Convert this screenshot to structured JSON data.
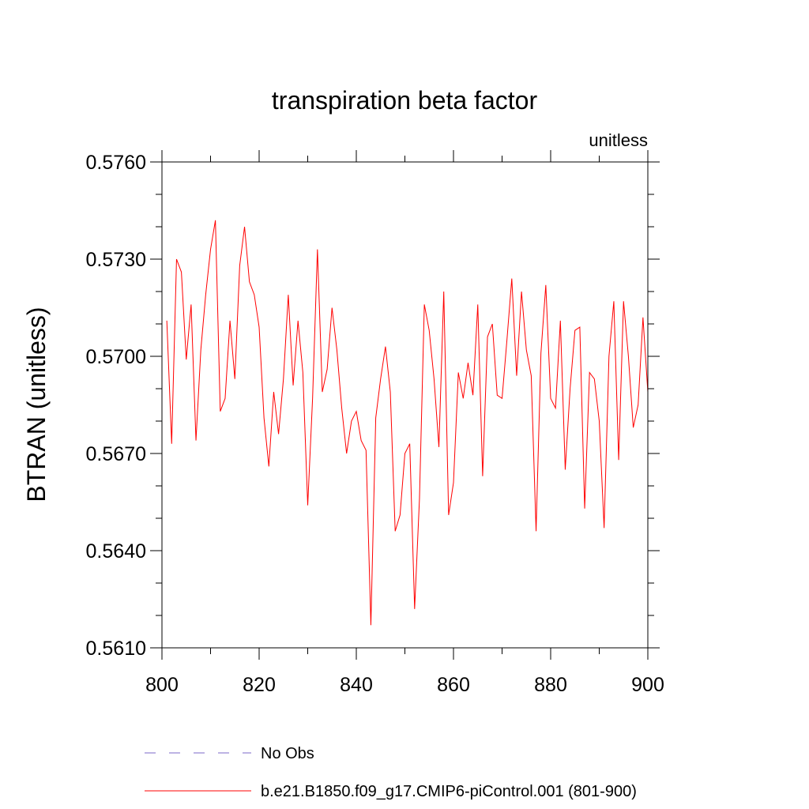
{
  "chart_data": {
    "type": "line",
    "title": "transpiration beta factor",
    "units_label": "unitless",
    "ylabel": "BTRAN  (unitless)",
    "xlabel": "",
    "xlim": [
      800,
      900
    ],
    "ylim": [
      0.561,
      0.576
    ],
    "x_ticks": [
      {
        "value": 800,
        "label": "800"
      },
      {
        "value": 820,
        "label": "820"
      },
      {
        "value": 840,
        "label": "840"
      },
      {
        "value": 860,
        "label": "860"
      },
      {
        "value": 880,
        "label": "880"
      },
      {
        "value": 900,
        "label": "900"
      }
    ],
    "y_ticks": [
      {
        "value": 0.561,
        "label": "0.5610"
      },
      {
        "value": 0.564,
        "label": "0.5640"
      },
      {
        "value": 0.567,
        "label": "0.5670"
      },
      {
        "value": 0.57,
        "label": "0.5700"
      },
      {
        "value": 0.573,
        "label": "0.5730"
      },
      {
        "value": 0.576,
        "label": "0.5760"
      }
    ],
    "grid": false,
    "legend_position": "bottom",
    "series": [
      {
        "name": "No Obs",
        "color": "#7b68c8",
        "dash": "dashed",
        "x": [],
        "values": []
      },
      {
        "name": "b.e21.B1850.f09_g17.CMIP6-piControl.001 (801-900)",
        "color": "#ff0000",
        "dash": "solid",
        "x": [
          801,
          802,
          803,
          804,
          805,
          806,
          807,
          808,
          809,
          810,
          811,
          812,
          813,
          814,
          815,
          816,
          817,
          818,
          819,
          820,
          821,
          822,
          823,
          824,
          825,
          826,
          827,
          828,
          829,
          830,
          831,
          832,
          833,
          834,
          835,
          836,
          837,
          838,
          839,
          840,
          841,
          842,
          843,
          844,
          845,
          846,
          847,
          848,
          849,
          850,
          851,
          852,
          853,
          854,
          855,
          856,
          857,
          858,
          859,
          860,
          861,
          862,
          863,
          864,
          865,
          866,
          867,
          868,
          869,
          870,
          871,
          872,
          873,
          874,
          875,
          876,
          877,
          878,
          879,
          880,
          881,
          882,
          883,
          884,
          885,
          886,
          887,
          888,
          889,
          890,
          891,
          892,
          893,
          894,
          895,
          896,
          897,
          898,
          899,
          900
        ],
        "values": [
          0.5711,
          0.5673,
          0.573,
          0.5726,
          0.5699,
          0.5716,
          0.5674,
          0.5702,
          0.5719,
          0.5733,
          0.5742,
          0.5683,
          0.5687,
          0.5711,
          0.5693,
          0.5728,
          0.574,
          0.5723,
          0.5719,
          0.5709,
          0.5681,
          0.5666,
          0.5689,
          0.5676,
          0.5693,
          0.5719,
          0.5691,
          0.5711,
          0.5695,
          0.5654,
          0.5687,
          0.5733,
          0.5689,
          0.5696,
          0.5715,
          0.5702,
          0.5684,
          0.567,
          0.568,
          0.5683,
          0.5674,
          0.5671,
          0.5617,
          0.5681,
          0.5693,
          0.5703,
          0.5689,
          0.5646,
          0.5651,
          0.567,
          0.5673,
          0.5622,
          0.5656,
          0.5716,
          0.5708,
          0.5693,
          0.5672,
          0.572,
          0.5651,
          0.5661,
          0.5695,
          0.5687,
          0.5698,
          0.5688,
          0.5716,
          0.5663,
          0.5706,
          0.571,
          0.5688,
          0.5687,
          0.5705,
          0.5724,
          0.5694,
          0.572,
          0.5702,
          0.5694,
          0.5646,
          0.5701,
          0.5722,
          0.5687,
          0.5684,
          0.5711,
          0.5665,
          0.569,
          0.5708,
          0.5709,
          0.5653,
          0.5695,
          0.5693,
          0.568,
          0.5647,
          0.57,
          0.5717,
          0.5668,
          0.5717,
          0.57,
          0.5678,
          0.5685,
          0.5712,
          0.5689
        ]
      }
    ]
  }
}
